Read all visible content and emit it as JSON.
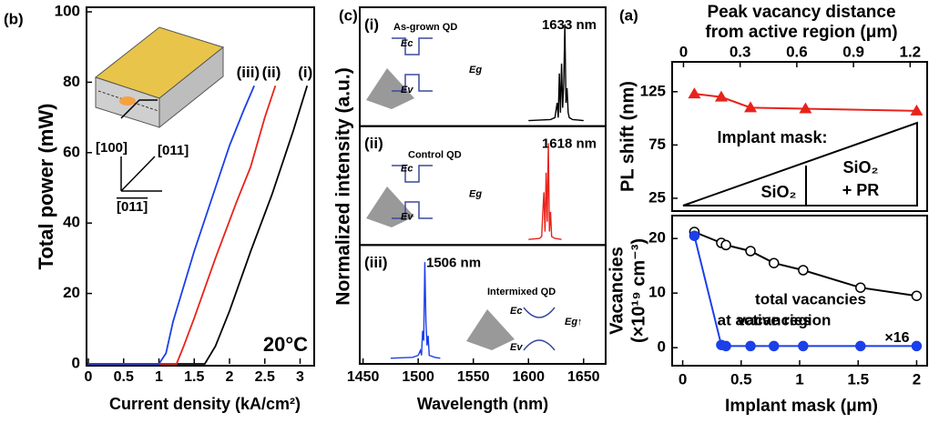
{
  "chart_data": [
    {
      "type": "line",
      "label": "(b)",
      "xlabel": "Current density (kA/cm²)",
      "ylabel": "Total power (mW)",
      "annotation": "20°C",
      "xlim": [
        0,
        3.2
      ],
      "ylim": [
        0,
        100
      ],
      "xticks": [
        0,
        0.5,
        1,
        1.5,
        2,
        2.5,
        3
      ],
      "yticks": [
        0,
        20,
        40,
        60,
        80,
        100
      ],
      "inset_labels": [
        "[100]",
        "[011]",
        "[011]"
      ],
      "series": [
        {
          "name": "(i)",
          "color": "#000000",
          "x": [
            0,
            1.65,
            1.8,
            2.0,
            2.3,
            2.6,
            2.9,
            3.1
          ],
          "values": [
            0,
            0,
            5,
            15,
            32,
            48,
            66,
            79
          ]
        },
        {
          "name": "(ii)",
          "color": "#e8231b",
          "x": [
            0,
            1.25,
            1.35,
            1.5,
            1.8,
            2.1,
            2.3,
            2.5,
            2.65
          ],
          "values": [
            0,
            0,
            5,
            13,
            30,
            46,
            56,
            70,
            79
          ]
        },
        {
          "name": "(iii)",
          "color": "#1b3fe8",
          "x": [
            0,
            1.0,
            1.1,
            1.2,
            1.5,
            1.8,
            2.0,
            2.2,
            2.35
          ],
          "values": [
            0,
            0,
            3,
            12,
            32,
            50,
            62,
            72,
            79
          ]
        }
      ]
    },
    {
      "type": "spectra",
      "label": "(c)",
      "xlabel": "Wavelength (nm)",
      "ylabel": "Normalized intensity (a.u.)",
      "xlim": [
        1447,
        1670
      ],
      "ylim": [
        0,
        1.1
      ],
      "xticks": [
        1450,
        1500,
        1550,
        1600,
        1650
      ],
      "panels": [
        {
          "name": "(i)",
          "title": "As-grown QD",
          "peak_label": "1633 nm",
          "color": "#000000",
          "band_labels": [
            "Ec",
            "Ev",
            "Eg"
          ],
          "x": [
            1600,
            1620,
            1624,
            1626,
            1627,
            1628,
            1629,
            1630,
            1631,
            1632,
            1633,
            1634,
            1635,
            1636,
            1637,
            1640,
            1650
          ],
          "values": [
            0.02,
            0.03,
            0.05,
            0.2,
            0.05,
            0.5,
            0.1,
            0.6,
            0.15,
            0.4,
            1.0,
            0.2,
            0.35,
            0.1,
            0.05,
            0.03,
            0.02
          ]
        },
        {
          "name": "(ii)",
          "title": "Control QD",
          "peak_label": "1618 nm",
          "color": "#e8231b",
          "band_labels": [
            "Ec",
            "Ev",
            "Eg"
          ],
          "x": [
            1600,
            1610,
            1612,
            1613,
            1614,
            1615,
            1616,
            1617,
            1618,
            1619,
            1620,
            1621,
            1624,
            1630
          ],
          "values": [
            0.02,
            0.03,
            0.05,
            0.3,
            0.5,
            0.1,
            0.7,
            0.2,
            1.0,
            0.1,
            0.3,
            0.05,
            0.03,
            0.02
          ]
        },
        {
          "name": "(iii)",
          "title": "Intermixed QD",
          "peak_label": "1506 nm",
          "color": "#1b3fe8",
          "band_labels": [
            "Ec",
            "Ev",
            "Eg↑"
          ],
          "x": [
            1475,
            1495,
            1500,
            1502,
            1503,
            1504,
            1505,
            1506,
            1507,
            1508,
            1509,
            1510,
            1515,
            1520
          ],
          "values": [
            0.02,
            0.03,
            0.05,
            0.1,
            0.05,
            0.3,
            0.2,
            1.0,
            0.4,
            0.15,
            0.25,
            0.05,
            0.03,
            0.02
          ]
        }
      ]
    },
    {
      "type": "dual",
      "label": "(a)",
      "xlabel": "Implant mask (μm)",
      "xlim": [
        -0.09,
        2.09
      ],
      "xticks": [
        0,
        0.5,
        1,
        1.5,
        2
      ],
      "x2label": [
        "Peak vacancy distance",
        "from active region (μm)"
      ],
      "x2lim": [
        -0.06,
        1.29
      ],
      "x2ticks": [
        0,
        0.3,
        0.6,
        0.9,
        1.2
      ],
      "panels": [
        {
          "ylabel": [
            "PL shift (nm)"
          ],
          "ylim": [
            13,
            153
          ],
          "yticks": [
            25,
            75,
            125
          ],
          "mask_labels": [
            "Implant mask:",
            "SiO₂",
            "SiO₂",
            "+ PR"
          ],
          "series": [
            {
              "color": "#e8231b",
              "marker": "triangle",
              "x": [
                0.1,
                0.33,
                0.58,
                1.05,
                2.0
              ],
              "values": [
                123,
                120,
                110,
                109,
                107
              ]
            }
          ]
        },
        {
          "ylabel": [
            "Vacancies",
            "(×10¹⁹ cm⁻³)"
          ],
          "ylim": [
            -3.3,
            24.2
          ],
          "yticks": [
            0,
            10,
            20
          ],
          "annotation": "×16",
          "series": [
            {
              "name": [
                "total vacancies"
              ],
              "color": "#000000",
              "marker": "open",
              "x": [
                0.1,
                0.33,
                0.37,
                0.58,
                0.78,
                1.03,
                1.52,
                2.0
              ],
              "values": [
                21.2,
                19.2,
                18.8,
                17.7,
                15.5,
                14.2,
                11,
                9.5
              ]
            },
            {
              "name": [
                "vacancies",
                "at active region"
              ],
              "color": "#1b3fe8",
              "marker": "filled",
              "x": [
                0.1,
                0.33,
                0.37,
                0.58,
                0.78,
                1.03,
                1.52,
                2.0
              ],
              "values": [
                20.5,
                0.5,
                0.3,
                0.3,
                0.3,
                0.3,
                0.3,
                0.3
              ]
            }
          ]
        }
      ]
    }
  ]
}
